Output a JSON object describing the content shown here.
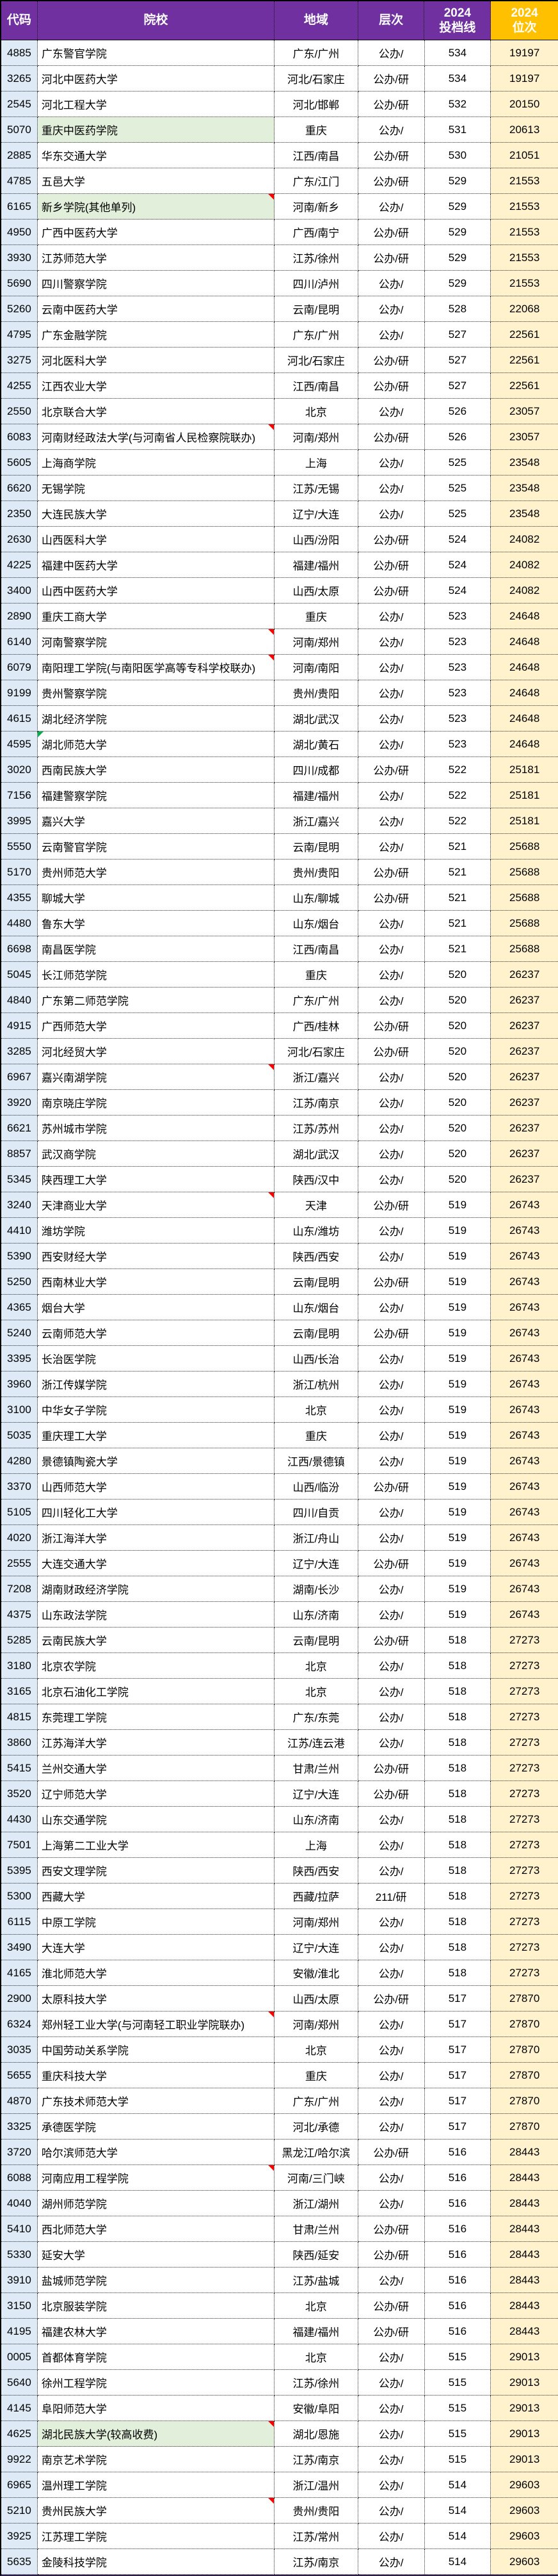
{
  "table": {
    "headers": {
      "code": "代码",
      "school": "院校",
      "region": "地域",
      "level": "层次",
      "score_year": "2024",
      "score_label": "投档线",
      "rank_year": "2024",
      "rank_label": "位次"
    }
  },
  "colors": {
    "header_purple": "#7030A0",
    "header_orange": "#FFC000",
    "code_column_bg": "#DEEBF7",
    "rank_column_bg": "#FFF2CC",
    "highlight_green": "#E2EFDA",
    "comment_flag_red": "#FE0000",
    "note_mark_green": "#00B050"
  },
  "icons": {
    "comment_flag_icon": "red corner triangle",
    "note_mark_icon": "green corner triangle"
  },
  "rows": [
    {
      "code": "4885",
      "school": "广东警官学院",
      "region": "广东/广州",
      "level": "公办/",
      "score": "534",
      "rank": "19197"
    },
    {
      "code": "3265",
      "school": "河北中医药大学",
      "region": "河北/石家庄",
      "level": "公办/研",
      "score": "534",
      "rank": "19197"
    },
    {
      "code": "2545",
      "school": "河北工程大学",
      "region": "河北/邯郸",
      "level": "公办/研",
      "score": "532",
      "rank": "20150"
    },
    {
      "code": "5070",
      "school": "重庆中医药学院",
      "region": "重庆",
      "level": "公办/",
      "score": "531",
      "rank": "20613",
      "highlighted": true
    },
    {
      "code": "2885",
      "school": "华东交通大学",
      "region": "江西/南昌",
      "level": "公办/研",
      "score": "530",
      "rank": "21051"
    },
    {
      "code": "4785",
      "school": "五邑大学",
      "region": "广东/江门",
      "level": "公办/研",
      "score": "529",
      "rank": "21553"
    },
    {
      "code": "6165",
      "school": "新乡学院(其他单列)",
      "region": "河南/新乡",
      "level": "公办/",
      "score": "529",
      "rank": "21553",
      "highlighted": true,
      "comment_flag": true
    },
    {
      "code": "4950",
      "school": "广西中医药大学",
      "region": "广西/南宁",
      "level": "公办/研",
      "score": "529",
      "rank": "21553"
    },
    {
      "code": "3930",
      "school": "江苏师范大学",
      "region": "江苏/徐州",
      "level": "公办/研",
      "score": "529",
      "rank": "21553"
    },
    {
      "code": "5690",
      "school": "四川警察学院",
      "region": "四川/泸州",
      "level": "公办/",
      "score": "529",
      "rank": "21553"
    },
    {
      "code": "5260",
      "school": "云南中医药大学",
      "region": "云南/昆明",
      "level": "公办/",
      "score": "528",
      "rank": "22068"
    },
    {
      "code": "4795",
      "school": "广东金融学院",
      "region": "广东/广州",
      "level": "公办/",
      "score": "527",
      "rank": "22561"
    },
    {
      "code": "3275",
      "school": "河北医科大学",
      "region": "河北/石家庄",
      "level": "公办/研",
      "score": "527",
      "rank": "22561"
    },
    {
      "code": "4255",
      "school": "江西农业大学",
      "region": "江西/南昌",
      "level": "公办/研",
      "score": "527",
      "rank": "22561"
    },
    {
      "code": "2550",
      "school": "北京联合大学",
      "region": "北京",
      "level": "公办/",
      "score": "526",
      "rank": "23057"
    },
    {
      "code": "6083",
      "school": "河南财经政法大学(与河南省人民检察院联办)",
      "region": "河南/郑州",
      "level": "公办/研",
      "score": "526",
      "rank": "23057",
      "comment_flag": true
    },
    {
      "code": "5605",
      "school": "上海商学院",
      "region": "上海",
      "level": "公办/",
      "score": "525",
      "rank": "23548"
    },
    {
      "code": "6620",
      "school": "无锡学院",
      "region": "江苏/无锡",
      "level": "公办/",
      "score": "525",
      "rank": "23548"
    },
    {
      "code": "2350",
      "school": "大连民族大学",
      "region": "辽宁/大连",
      "level": "公办/",
      "score": "525",
      "rank": "23548"
    },
    {
      "code": "2630",
      "school": "山西医科大学",
      "region": "山西/汾阳",
      "level": "公办/研",
      "score": "524",
      "rank": "24082"
    },
    {
      "code": "4225",
      "school": "福建中医药大学",
      "region": "福建/福州",
      "level": "公办/研",
      "score": "524",
      "rank": "24082"
    },
    {
      "code": "3400",
      "school": "山西中医药大学",
      "region": "山西/太原",
      "level": "公办/研",
      "score": "524",
      "rank": "24082"
    },
    {
      "code": "2890",
      "school": "重庆工商大学",
      "region": "重庆",
      "level": "公办/",
      "score": "523",
      "rank": "24648"
    },
    {
      "code": "6140",
      "school": "河南警察学院",
      "region": "河南/郑州",
      "level": "公办/",
      "score": "523",
      "rank": "24648",
      "comment_flag": true
    },
    {
      "code": "6079",
      "school": "南阳理工学院(与南阳医学高等专科学校联办)",
      "region": "河南/南阳",
      "level": "公办/",
      "score": "523",
      "rank": "24648",
      "comment_flag": true
    },
    {
      "code": "9199",
      "school": "贵州警察学院",
      "region": "贵州/贵阳",
      "level": "公办/",
      "score": "523",
      "rank": "24648"
    },
    {
      "code": "4615",
      "school": "湖北经济学院",
      "region": "湖北/武汉",
      "level": "公办/",
      "score": "523",
      "rank": "24648"
    },
    {
      "code": "4595",
      "school": "湖北师范大学",
      "region": "湖北/黄石",
      "level": "公办/",
      "score": "523",
      "rank": "24648",
      "note_mark": true
    },
    {
      "code": "3020",
      "school": "西南民族大学",
      "region": "四川/成都",
      "level": "公办/研",
      "score": "522",
      "rank": "25181"
    },
    {
      "code": "7156",
      "school": "福建警察学院",
      "region": "福建/福州",
      "level": "公办/",
      "score": "522",
      "rank": "25181"
    },
    {
      "code": "3995",
      "school": "嘉兴大学",
      "region": "浙江/嘉兴",
      "level": "公办/",
      "score": "522",
      "rank": "25181"
    },
    {
      "code": "5550",
      "school": "云南警官学院",
      "region": "云南/昆明",
      "level": "公办/",
      "score": "521",
      "rank": "25688"
    },
    {
      "code": "5170",
      "school": "贵州师范大学",
      "region": "贵州/贵阳",
      "level": "公办/研",
      "score": "521",
      "rank": "25688"
    },
    {
      "code": "4355",
      "school": "聊城大学",
      "region": "山东/聊城",
      "level": "公办/研",
      "score": "521",
      "rank": "25688"
    },
    {
      "code": "4480",
      "school": "鲁东大学",
      "region": "山东/烟台",
      "level": "公办/",
      "score": "521",
      "rank": "25688"
    },
    {
      "code": "6698",
      "school": "南昌医学院",
      "region": "江西/南昌",
      "level": "公办/",
      "score": "521",
      "rank": "25688"
    },
    {
      "code": "5045",
      "school": "长江师范学院",
      "region": "重庆",
      "level": "公办/",
      "score": "520",
      "rank": "26237"
    },
    {
      "code": "4840",
      "school": "广东第二师范学院",
      "region": "广东/广州",
      "level": "公办/",
      "score": "520",
      "rank": "26237"
    },
    {
      "code": "4915",
      "school": "广西师范大学",
      "region": "广西/桂林",
      "level": "公办/研",
      "score": "520",
      "rank": "26237"
    },
    {
      "code": "3285",
      "school": "河北经贸大学",
      "region": "河北/石家庄",
      "level": "公办/研",
      "score": "520",
      "rank": "26237"
    },
    {
      "code": "6967",
      "school": "嘉兴南湖学院",
      "region": "浙江/嘉兴",
      "level": "公办/",
      "score": "520",
      "rank": "26237",
      "comment_flag": true
    },
    {
      "code": "3920",
      "school": "南京晓庄学院",
      "region": "江苏/南京",
      "level": "公办/",
      "score": "520",
      "rank": "26237"
    },
    {
      "code": "6621",
      "school": "苏州城市学院",
      "region": "江苏/苏州",
      "level": "公办/",
      "score": "520",
      "rank": "26237"
    },
    {
      "code": "8857",
      "school": "武汉商学院",
      "region": "湖北/武汉",
      "level": "公办/",
      "score": "520",
      "rank": "26237"
    },
    {
      "code": "5345",
      "school": "陕西理工大学",
      "region": "陕西/汉中",
      "level": "公办/",
      "score": "520",
      "rank": "26237"
    },
    {
      "code": "3240",
      "school": "天津商业大学",
      "region": "天津",
      "level": "公办/研",
      "score": "519",
      "rank": "26743",
      "comment_flag": true
    },
    {
      "code": "4410",
      "school": "潍坊学院",
      "region": "山东/潍坊",
      "level": "公办/",
      "score": "519",
      "rank": "26743"
    },
    {
      "code": "5390",
      "school": "西安财经大学",
      "region": "陕西/西安",
      "level": "公办/",
      "score": "519",
      "rank": "26743"
    },
    {
      "code": "5250",
      "school": "西南林业大学",
      "region": "云南/昆明",
      "level": "公办/研",
      "score": "519",
      "rank": "26743"
    },
    {
      "code": "4365",
      "school": "烟台大学",
      "region": "山东/烟台",
      "level": "公办/",
      "score": "519",
      "rank": "26743"
    },
    {
      "code": "5240",
      "school": "云南师范大学",
      "region": "云南/昆明",
      "level": "公办/研",
      "score": "519",
      "rank": "26743"
    },
    {
      "code": "3395",
      "school": "长治医学院",
      "region": "山西/长治",
      "level": "公办/",
      "score": "519",
      "rank": "26743"
    },
    {
      "code": "3960",
      "school": "浙江传媒学院",
      "region": "浙江/杭州",
      "level": "公办/",
      "score": "519",
      "rank": "26743"
    },
    {
      "code": "3100",
      "school": "中华女子学院",
      "region": "北京",
      "level": "公办/",
      "score": "519",
      "rank": "26743"
    },
    {
      "code": "5035",
      "school": "重庆理工大学",
      "region": "重庆",
      "level": "公办/",
      "score": "519",
      "rank": "26743"
    },
    {
      "code": "4280",
      "school": "景德镇陶瓷大学",
      "region": "江西/景德镇",
      "level": "公办/",
      "score": "519",
      "rank": "26743"
    },
    {
      "code": "3370",
      "school": "山西师范大学",
      "region": "山西/临汾",
      "level": "公办/研",
      "score": "519",
      "rank": "26743"
    },
    {
      "code": "5105",
      "school": "四川轻化工大学",
      "region": "四川/自贡",
      "level": "公办/",
      "score": "519",
      "rank": "26743"
    },
    {
      "code": "4020",
      "school": "浙江海洋大学",
      "region": "浙江/舟山",
      "level": "公办/",
      "score": "519",
      "rank": "26743"
    },
    {
      "code": "2555",
      "school": "大连交通大学",
      "region": "辽宁/大连",
      "level": "公办/研",
      "score": "519",
      "rank": "26743"
    },
    {
      "code": "7208",
      "school": "湖南财政经济学院",
      "region": "湖南/长沙",
      "level": "公办/",
      "score": "519",
      "rank": "26743"
    },
    {
      "code": "4375",
      "school": "山东政法学院",
      "region": "山东/济南",
      "level": "公办/",
      "score": "519",
      "rank": "26743"
    },
    {
      "code": "5285",
      "school": "云南民族大学",
      "region": "云南/昆明",
      "level": "公办/研",
      "score": "518",
      "rank": "27273"
    },
    {
      "code": "3180",
      "school": "北京农学院",
      "region": "北京",
      "level": "公办/",
      "score": "518",
      "rank": "27273"
    },
    {
      "code": "3165",
      "school": "北京石油化工学院",
      "region": "北京",
      "level": "公办/",
      "score": "518",
      "rank": "27273"
    },
    {
      "code": "4815",
      "school": "东莞理工学院",
      "region": "广东/东莞",
      "level": "公办/",
      "score": "518",
      "rank": "27273"
    },
    {
      "code": "3860",
      "school": "江苏海洋大学",
      "region": "江苏/连云港",
      "level": "公办/",
      "score": "518",
      "rank": "27273"
    },
    {
      "code": "5415",
      "school": "兰州交通大学",
      "region": "甘肃/兰州",
      "level": "公办/研",
      "score": "518",
      "rank": "27273"
    },
    {
      "code": "3520",
      "school": "辽宁师范大学",
      "region": "辽宁/大连",
      "level": "公办/研",
      "score": "518",
      "rank": "27273"
    },
    {
      "code": "4430",
      "school": "山东交通学院",
      "region": "山东/济南",
      "level": "公办/",
      "score": "518",
      "rank": "27273"
    },
    {
      "code": "7501",
      "school": "上海第二工业大学",
      "region": "上海",
      "level": "公办/",
      "score": "518",
      "rank": "27273"
    },
    {
      "code": "5395",
      "school": "西安文理学院",
      "region": "陕西/西安",
      "level": "公办/",
      "score": "518",
      "rank": "27273"
    },
    {
      "code": "5300",
      "school": "西藏大学",
      "region": "西藏/拉萨",
      "level": "211/研",
      "score": "518",
      "rank": "27273"
    },
    {
      "code": "6115",
      "school": "中原工学院",
      "region": "河南/郑州",
      "level": "公办/",
      "score": "518",
      "rank": "27273"
    },
    {
      "code": "3490",
      "school": "大连大学",
      "region": "辽宁/大连",
      "level": "公办/",
      "score": "518",
      "rank": "27273"
    },
    {
      "code": "4165",
      "school": "淮北师范大学",
      "region": "安徽/淮北",
      "level": "公办/",
      "score": "518",
      "rank": "27273"
    },
    {
      "code": "2900",
      "school": "太原科技大学",
      "region": "山西/太原",
      "level": "公办/研",
      "score": "517",
      "rank": "27870"
    },
    {
      "code": "6324",
      "school": "郑州轻工业大学(与河南轻工职业学院联办)",
      "region": "河南/郑州",
      "level": "公办/",
      "score": "517",
      "rank": "27870",
      "comment_flag": true
    },
    {
      "code": "3035",
      "school": "中国劳动关系学院",
      "region": "北京",
      "level": "公办/",
      "score": "517",
      "rank": "27870"
    },
    {
      "code": "5655",
      "school": "重庆科技大学",
      "region": "重庆",
      "level": "公办/",
      "score": "517",
      "rank": "27870"
    },
    {
      "code": "4870",
      "school": "广东技术师范大学",
      "region": "广东/广州",
      "level": "公办/",
      "score": "517",
      "rank": "27870"
    },
    {
      "code": "3325",
      "school": "承德医学院",
      "region": "河北/承德",
      "level": "公办/",
      "score": "517",
      "rank": "27870"
    },
    {
      "code": "3720",
      "school": "哈尔滨师范大学",
      "region": "黑龙江/哈尔滨",
      "level": "公办/研",
      "score": "516",
      "rank": "28443"
    },
    {
      "code": "6088",
      "school": "河南应用工程学院",
      "region": "河南/三门峡",
      "level": "公办/",
      "score": "516",
      "rank": "28443",
      "comment_flag": true
    },
    {
      "code": "4040",
      "school": "湖州师范学院",
      "region": "浙江/湖州",
      "level": "公办/",
      "score": "516",
      "rank": "28443"
    },
    {
      "code": "5410",
      "school": "西北师范大学",
      "region": "甘肃/兰州",
      "level": "公办/研",
      "score": "516",
      "rank": "28443"
    },
    {
      "code": "5330",
      "school": "延安大学",
      "region": "陕西/延安",
      "level": "公办/研",
      "score": "516",
      "rank": "28443"
    },
    {
      "code": "3910",
      "school": "盐城师范学院",
      "region": "江苏/盐城",
      "level": "公办/",
      "score": "516",
      "rank": "28443"
    },
    {
      "code": "3150",
      "school": "北京服装学院",
      "region": "北京",
      "level": "公办/研",
      "score": "516",
      "rank": "28443"
    },
    {
      "code": "4195",
      "school": "福建农林大学",
      "region": "福建/福州",
      "level": "公办/研",
      "score": "516",
      "rank": "28443"
    },
    {
      "code": "0005",
      "school": "首都体育学院",
      "region": "北京",
      "level": "公办/",
      "score": "515",
      "rank": "29013"
    },
    {
      "code": "5640",
      "school": "徐州工程学院",
      "region": "江苏/徐州",
      "level": "公办/",
      "score": "515",
      "rank": "29013"
    },
    {
      "code": "4145",
      "school": "阜阳师范大学",
      "region": "安徽/阜阳",
      "level": "公办/",
      "score": "515",
      "rank": "29013"
    },
    {
      "code": "4625",
      "school": "湖北民族大学(较高收费)",
      "region": "湖北/恩施",
      "level": "公办/",
      "score": "515",
      "rank": "29013",
      "highlighted": true,
      "comment_flag": true
    },
    {
      "code": "9922",
      "school": "南京艺术学院",
      "region": "江苏/南京",
      "level": "公办/",
      "score": "515",
      "rank": "29013"
    },
    {
      "code": "6965",
      "school": "温州理工学院",
      "region": "浙江/温州",
      "level": "公办/",
      "score": "514",
      "rank": "29603"
    },
    {
      "code": "5210",
      "school": "贵州民族大学",
      "region": "贵州/贵阳",
      "level": "公办/",
      "score": "514",
      "rank": "29603",
      "comment_flag": true
    },
    {
      "code": "3925",
      "school": "江苏理工学院",
      "region": "江苏/常州",
      "level": "公办/",
      "score": "514",
      "rank": "29603"
    },
    {
      "code": "5635",
      "school": "金陵科技学院",
      "region": "江苏/南京",
      "level": "公办/",
      "score": "514",
      "rank": "29603"
    }
  ]
}
